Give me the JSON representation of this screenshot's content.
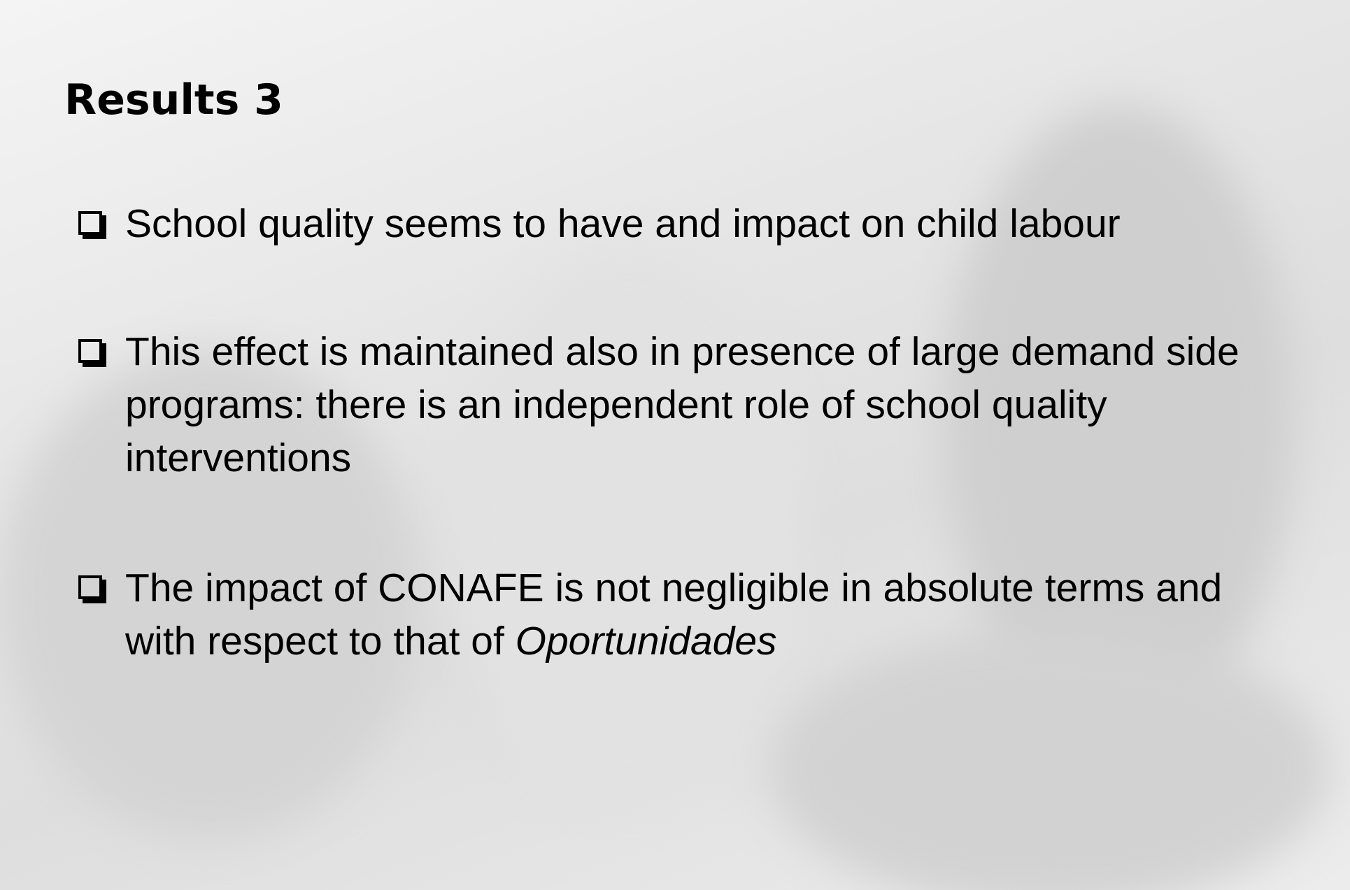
{
  "header": {
    "title": "Results 3"
  },
  "bullets": [
    {
      "parts": [
        {
          "text": "School quality seems to have and impact on child labour"
        }
      ]
    },
    {
      "parts": [
        {
          "text": "This effect is maintained also in presence of large demand side programs: there is an independent role of school quality interventions"
        }
      ]
    },
    {
      "parts": [
        {
          "text": "The impact of CONAFE is not negligible in absolute terms and with respect to that of "
        },
        {
          "text": "Oportunidades",
          "italic": true
        }
      ]
    }
  ]
}
